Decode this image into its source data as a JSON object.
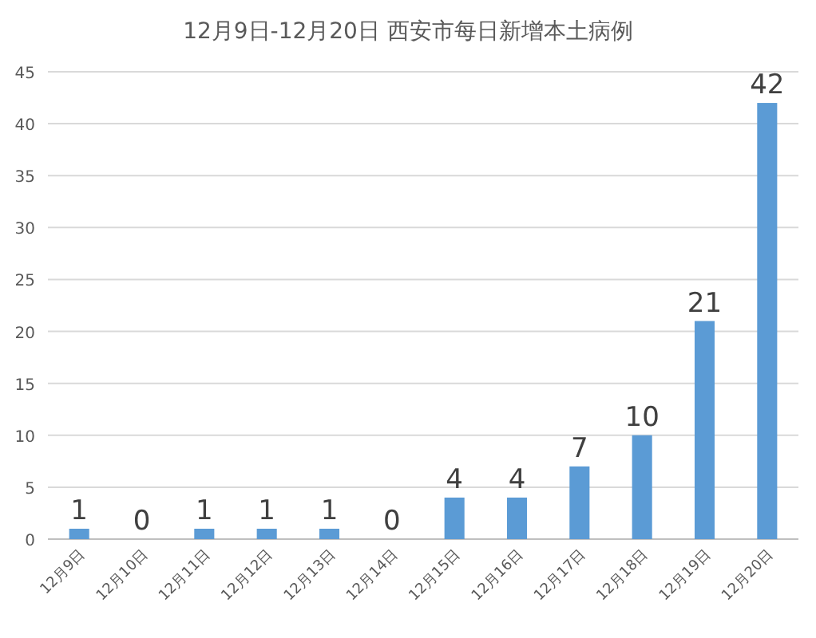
{
  "chart_data": {
    "type": "bar",
    "title": "12月9日-12月20日 西安市每日新增本土病例",
    "categories": [
      "12月9日",
      "12月10日",
      "12月11日",
      "12月12日",
      "12月13日",
      "12月14日",
      "12月15日",
      "12月16日",
      "12月17日",
      "12月18日",
      "12月19日",
      "12月20日"
    ],
    "values": [
      1,
      0,
      1,
      1,
      1,
      0,
      4,
      4,
      7,
      10,
      21,
      42
    ],
    "color": "#5b9bd5",
    "ylim": [
      0,
      45
    ],
    "yticks": [
      0,
      5,
      10,
      15,
      20,
      25,
      30,
      35,
      40,
      45
    ],
    "grid": "y",
    "data_labels": true
  }
}
